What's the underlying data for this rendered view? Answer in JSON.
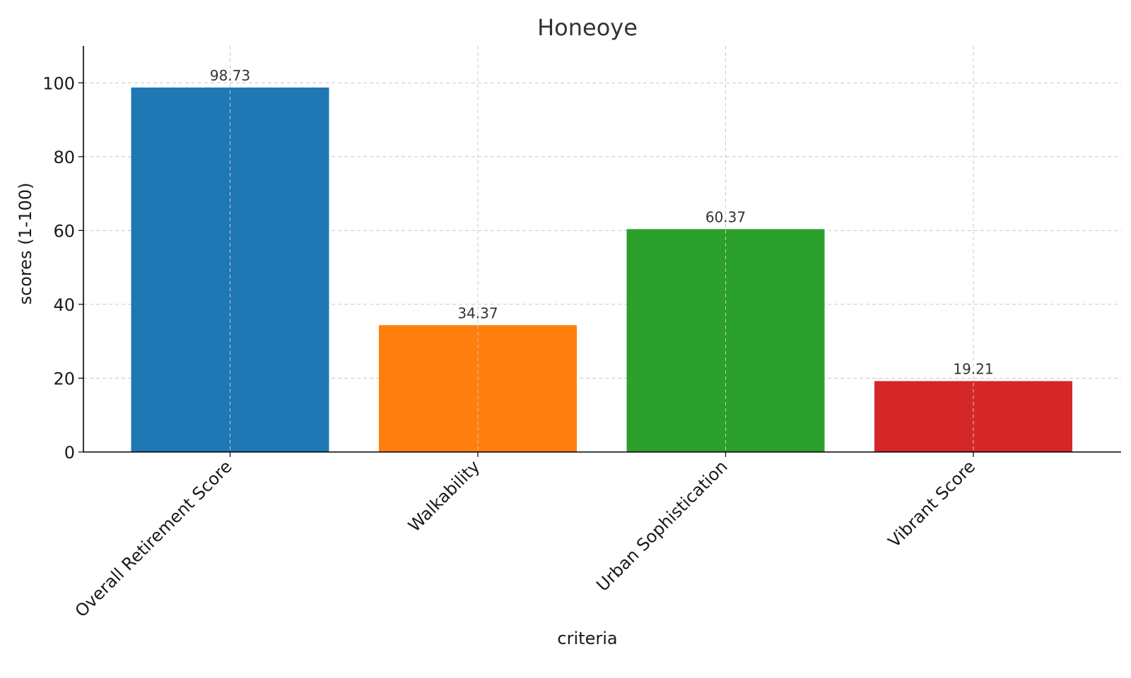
{
  "chart_data": {
    "type": "bar",
    "title": "Honeoye",
    "xlabel": "criteria",
    "ylabel": "scores (1-100)",
    "categories": [
      "Overall Retirement Score",
      "Walkability",
      "Urban Sophistication",
      "Vibrant Score"
    ],
    "values": [
      98.73,
      34.37,
      60.37,
      19.21
    ],
    "value_labels": [
      "98.73",
      "34.37",
      "60.37",
      "19.21"
    ],
    "colors": [
      "#1f77b4",
      "#ff7f0e",
      "#2ca02c",
      "#d62728"
    ],
    "ylim": [
      0,
      110
    ],
    "yticks": [
      0,
      20,
      40,
      60,
      80,
      100
    ],
    "ytick_labels": [
      "0",
      "20",
      "40",
      "60",
      "80",
      "100"
    ],
    "grid": true,
    "legend": "none"
  }
}
